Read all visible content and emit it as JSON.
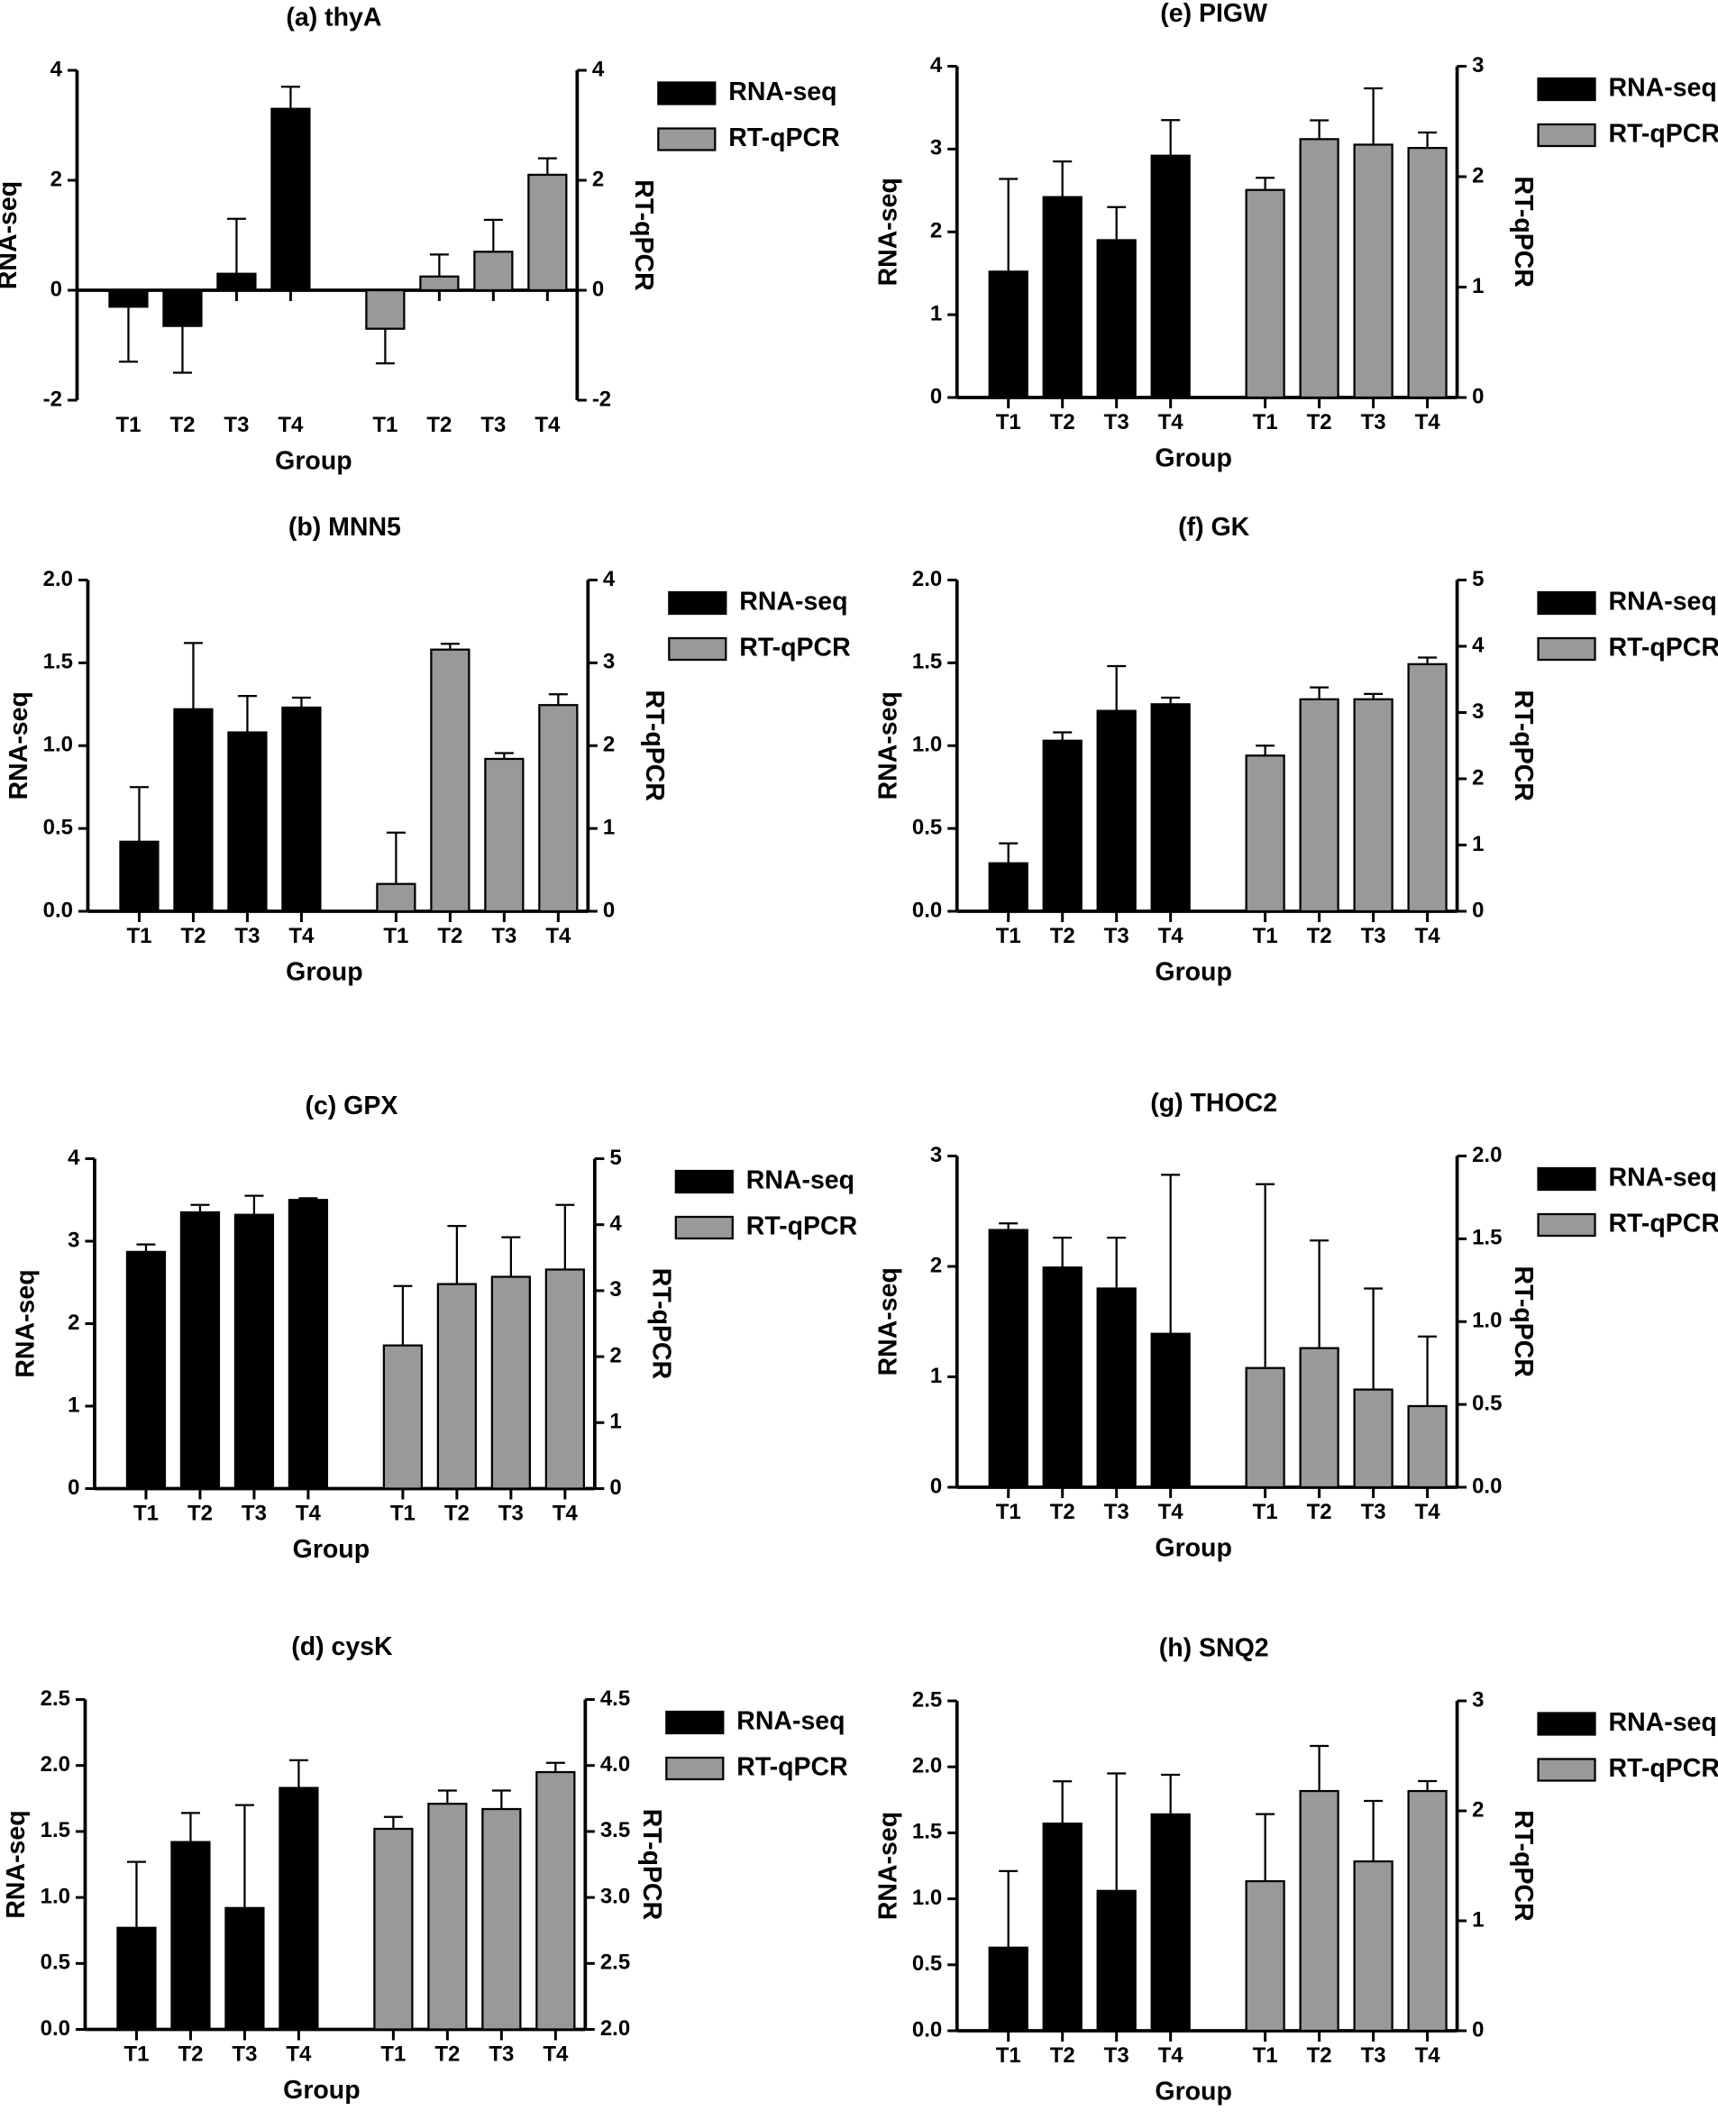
{
  "chart_data": [
    {
      "type": "bar",
      "title": "(a) thyA",
      "categories": [
        "T1",
        "T2",
        "T3",
        "T4",
        "T1",
        "T2",
        "T3",
        "T4"
      ],
      "x_label": "Group",
      "y_label": "RNA-seq",
      "y2_label": "RT-qPCR",
      "ylim": [
        -2,
        4
      ],
      "yticks": [
        -2,
        0,
        2,
        4
      ],
      "y2lim": [
        -2,
        4
      ],
      "y2ticks": [
        -2,
        0,
        2,
        4
      ],
      "series": [
        {
          "name": "RNA-seq",
          "color": "#000000",
          "values": [
            -0.3,
            -0.65,
            0.3,
            3.3,
            null,
            null,
            null,
            null
          ],
          "errors": [
            1.0,
            0.85,
            1.0,
            0.4,
            null,
            null,
            null,
            null
          ]
        },
        {
          "name": "RT-qPCR",
          "color": "#999999",
          "axis": "y2",
          "values": [
            null,
            null,
            null,
            null,
            -0.7,
            0.25,
            0.7,
            2.1
          ],
          "errors": [
            null,
            null,
            null,
            null,
            0.63,
            0.4,
            0.58,
            0.3
          ]
        }
      ]
    },
    {
      "type": "bar",
      "title": "(b) MNN5",
      "categories": [
        "T1",
        "T2",
        "T3",
        "T4",
        "T1",
        "T2",
        "T3",
        "T4"
      ],
      "x_label": "Group",
      "y_label": "RNA-seq",
      "y2_label": "RT-qPCR",
      "ylim": [
        0,
        2
      ],
      "yticks": [
        {
          "value": 0,
          "label": "0.0"
        },
        0.5,
        {
          "value": 1,
          "label": "1.0"
        },
        1.5,
        {
          "value": 2,
          "label": "2.0"
        }
      ],
      "y2lim": [
        0,
        4
      ],
      "y2ticks": [
        0,
        1,
        2,
        3,
        4
      ],
      "series": [
        {
          "name": "RNA-seq",
          "color": "#000000",
          "values": [
            0.42,
            1.22,
            1.08,
            1.23,
            null,
            null,
            null,
            null
          ],
          "errors": [
            0.33,
            0.4,
            0.22,
            0.06,
            null,
            null,
            null,
            null
          ]
        },
        {
          "name": "RT-qPCR",
          "color": "#999999",
          "axis": "y2",
          "values": [
            null,
            null,
            null,
            null,
            0.33,
            3.16,
            1.84,
            2.49
          ],
          "errors": [
            null,
            null,
            null,
            null,
            0.62,
            0.07,
            0.07,
            0.13
          ]
        }
      ]
    },
    {
      "type": "bar",
      "title": "(c) GPX",
      "categories": [
        "T1",
        "T2",
        "T3",
        "T4",
        "T1",
        "T2",
        "T3",
        "T4"
      ],
      "x_label": "Group",
      "y_label": "RNA-seq",
      "y2_label": "RT-qPCR",
      "ylim": [
        0,
        4
      ],
      "yticks": [
        0,
        1,
        2,
        3,
        4
      ],
      "y2lim": [
        0,
        5
      ],
      "y2ticks": [
        0,
        1,
        2,
        3,
        4,
        5
      ],
      "series": [
        {
          "name": "RNA-seq",
          "color": "#000000",
          "values": [
            2.87,
            3.35,
            3.32,
            3.5,
            null,
            null,
            null,
            null
          ],
          "errors": [
            0.09,
            0.09,
            0.23,
            0.02,
            null,
            null,
            null,
            null
          ]
        },
        {
          "name": "RT-qPCR",
          "color": "#999999",
          "axis": "y2",
          "values": [
            null,
            null,
            null,
            null,
            2.17,
            3.1,
            3.21,
            3.32
          ],
          "errors": [
            null,
            null,
            null,
            null,
            0.9,
            0.88,
            0.6,
            0.98
          ]
        }
      ]
    },
    {
      "type": "bar",
      "title": "(d) cysK",
      "categories": [
        "T1",
        "T2",
        "T3",
        "T4",
        "T1",
        "T2",
        "T3",
        "T4"
      ],
      "x_label": "Group",
      "y_label": "RNA-seq",
      "y2_label": "RT-qPCR",
      "ylim": [
        0,
        2.5
      ],
      "yticks": [
        {
          "value": 0,
          "label": "0.0"
        },
        0.5,
        {
          "value": 1,
          "label": "1.0"
        },
        1.5,
        {
          "value": 2,
          "label": "2.0"
        },
        2.5
      ],
      "y2lim": [
        2,
        4.5
      ],
      "y2ticks": [
        {
          "value": 2,
          "label": "2.0"
        },
        2.5,
        {
          "value": 3,
          "label": "3.0"
        },
        3.5,
        {
          "value": 4,
          "label": "4.0"
        },
        4.5
      ],
      "series": [
        {
          "name": "RNA-seq",
          "color": "#000000",
          "values": [
            0.77,
            1.42,
            0.92,
            1.83,
            null,
            null,
            null,
            null
          ],
          "errors": [
            0.5,
            0.22,
            0.78,
            0.21,
            null,
            null,
            null,
            null
          ]
        },
        {
          "name": "RT-qPCR",
          "color": "#999999",
          "axis": "y2",
          "values": [
            null,
            null,
            null,
            null,
            3.52,
            3.71,
            3.67,
            3.95
          ],
          "errors": [
            null,
            null,
            null,
            null,
            0.09,
            0.1,
            0.14,
            0.07
          ]
        }
      ]
    },
    {
      "type": "bar",
      "title": "(e) PIGW",
      "categories": [
        "T1",
        "T2",
        "T3",
        "T4",
        "T1",
        "T2",
        "T3",
        "T4"
      ],
      "x_label": "Group",
      "y_label": "RNA-seq",
      "y2_label": "RT-qPCR",
      "ylim": [
        0,
        4
      ],
      "yticks": [
        0,
        1,
        2,
        3,
        4
      ],
      "y2lim": [
        0,
        3
      ],
      "y2ticks": [
        0,
        1,
        2,
        3
      ],
      "series": [
        {
          "name": "RNA-seq",
          "color": "#000000",
          "values": [
            1.52,
            2.42,
            1.9,
            2.92,
            null,
            null,
            null,
            null
          ],
          "errors": [
            1.12,
            0.43,
            0.4,
            0.43,
            null,
            null,
            null,
            null
          ]
        },
        {
          "name": "RT-qPCR",
          "color": "#999999",
          "axis": "y2",
          "values": [
            null,
            null,
            null,
            null,
            1.88,
            2.34,
            2.29,
            2.26
          ],
          "errors": [
            null,
            null,
            null,
            null,
            0.11,
            0.17,
            0.51,
            0.14
          ]
        }
      ]
    },
    {
      "type": "bar",
      "title": "(f) GK",
      "categories": [
        "T1",
        "T2",
        "T3",
        "T4",
        "T1",
        "T2",
        "T3",
        "T4"
      ],
      "x_label": "Group",
      "y_label": "RNA-seq",
      "y2_label": "RT-qPCR",
      "ylim": [
        0,
        2
      ],
      "yticks": [
        {
          "value": 0,
          "label": "0.0"
        },
        0.5,
        {
          "value": 1,
          "label": "1.0"
        },
        1.5,
        {
          "value": 2,
          "label": "2.0"
        }
      ],
      "y2lim": [
        0,
        5
      ],
      "y2ticks": [
        0,
        1,
        2,
        3,
        4,
        5
      ],
      "series": [
        {
          "name": "RNA-seq",
          "color": "#000000",
          "values": [
            0.29,
            1.03,
            1.21,
            1.25,
            null,
            null,
            null,
            null
          ],
          "errors": [
            0.12,
            0.05,
            0.27,
            0.04,
            null,
            null,
            null,
            null
          ]
        },
        {
          "name": "RT-qPCR",
          "color": "#999999",
          "axis": "y2",
          "values": [
            null,
            null,
            null,
            null,
            2.35,
            3.2,
            3.2,
            3.73
          ],
          "errors": [
            null,
            null,
            null,
            null,
            0.15,
            0.18,
            0.08,
            0.1
          ]
        }
      ]
    },
    {
      "type": "bar",
      "title": "(g) THOC2",
      "categories": [
        "T1",
        "T2",
        "T3",
        "T4",
        "T1",
        "T2",
        "T3",
        "T4"
      ],
      "x_label": "Group",
      "y_label": "RNA-seq",
      "y2_label": "RT-qPCR",
      "ylim": [
        0,
        3
      ],
      "yticks": [
        0,
        1,
        2,
        3
      ],
      "y2lim": [
        0,
        2
      ],
      "y2ticks": [
        {
          "value": 0,
          "label": "0.0"
        },
        0.5,
        {
          "value": 1,
          "label": "1.0"
        },
        1.5,
        {
          "value": 2,
          "label": "2.0"
        }
      ],
      "series": [
        {
          "name": "RNA-seq",
          "color": "#000000",
          "values": [
            2.33,
            1.99,
            1.8,
            1.39,
            null,
            null,
            null,
            null
          ],
          "errors": [
            0.06,
            0.27,
            0.46,
            1.44,
            null,
            null,
            null,
            null
          ]
        },
        {
          "name": "RT-qPCR",
          "color": "#999999",
          "axis": "y2",
          "values": [
            null,
            null,
            null,
            null,
            0.72,
            0.84,
            0.59,
            0.49
          ],
          "errors": [
            null,
            null,
            null,
            null,
            1.11,
            0.65,
            0.61,
            0.42
          ]
        }
      ]
    },
    {
      "type": "bar",
      "title": "(h) SNQ2",
      "categories": [
        "T1",
        "T2",
        "T3",
        "T4",
        "T1",
        "T2",
        "T3",
        "T4"
      ],
      "x_label": "Group",
      "y_label": "RNA-seq",
      "y2_label": "RT-qPCR",
      "ylim": [
        0,
        2.5
      ],
      "yticks": [
        {
          "value": 0,
          "label": "0.0"
        },
        0.5,
        {
          "value": 1,
          "label": "1.0"
        },
        1.5,
        {
          "value": 2,
          "label": "2.0"
        },
        2.5
      ],
      "y2lim": [
        0,
        3
      ],
      "y2ticks": [
        0,
        1,
        2,
        3
      ],
      "series": [
        {
          "name": "RNA-seq",
          "color": "#000000",
          "values": [
            0.63,
            1.57,
            1.06,
            1.64,
            null,
            null,
            null,
            null
          ],
          "errors": [
            0.58,
            0.32,
            0.89,
            0.3,
            null,
            null,
            null,
            null
          ]
        },
        {
          "name": "RT-qPCR",
          "color": "#999999",
          "axis": "y2",
          "values": [
            null,
            null,
            null,
            null,
            1.36,
            2.18,
            1.54,
            2.18
          ],
          "errors": [
            null,
            null,
            null,
            null,
            0.61,
            0.41,
            0.55,
            0.09
          ]
        }
      ]
    }
  ]
}
